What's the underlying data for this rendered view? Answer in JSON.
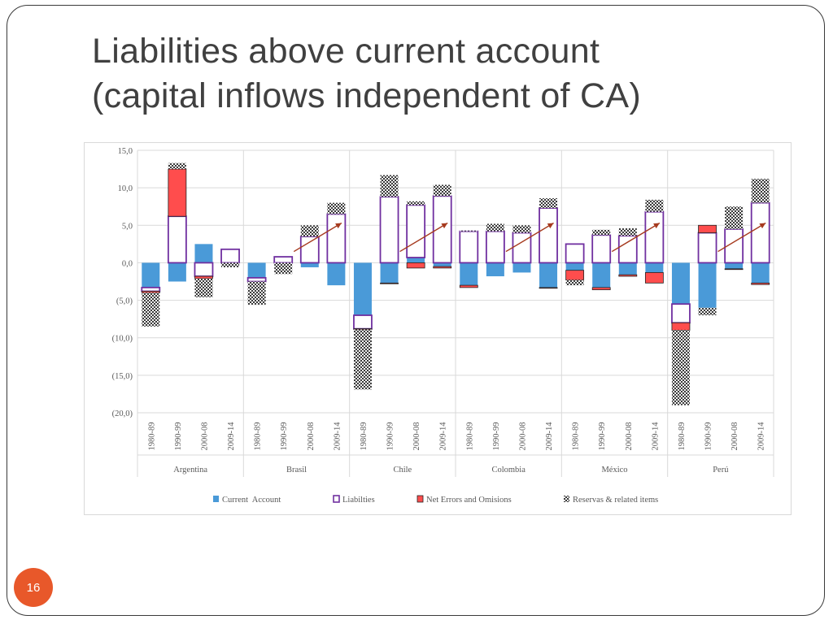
{
  "slide": {
    "title_line1": "Liabilities above current account",
    "title_line2": "(capital inflows independent of CA)",
    "page_number": "16"
  },
  "colors": {
    "current_account": "#4a9ad8",
    "liabilities_border": "#7030a0",
    "net_errors": "#ff4d4d",
    "reserves": "#9e9e9e",
    "arrow": "#a63a1e",
    "badge": "#e8582a"
  },
  "chart_data": {
    "type": "bar",
    "stacked": true,
    "ylim": [
      -20,
      15
    ],
    "yticks": [
      15,
      10,
      5,
      0,
      -5,
      -10,
      -15,
      -20
    ],
    "ytick_labels": [
      "15,0",
      "10,0",
      "5,0",
      "0,0",
      "(5,0)",
      "(10,0)",
      "(15,0)",
      "(20,0)"
    ],
    "grid": true,
    "legend_position": "bottom",
    "periods": [
      "1980-89",
      "1990-99",
      "2000-08",
      "2009-14"
    ],
    "countries": [
      "Argentina",
      "Brasil",
      "Chile",
      "Colombia",
      "México",
      "Perú"
    ],
    "series": [
      {
        "name": "Current  Account",
        "values": [
          -3.3,
          -2.5,
          2.5,
          0,
          -2.0,
          0,
          -0.6,
          -3.0,
          -7.0,
          -2.7,
          0.7,
          -0.5,
          -3.0,
          -1.8,
          -1.3,
          -3.3,
          -1.0,
          -3.3,
          -1.6,
          -1.3,
          -5.5,
          -6.0,
          -0.8,
          -2.7
        ]
      },
      {
        "name": "Liabilties",
        "values": [
          -0.5,
          6.2,
          -1.8,
          1.8,
          -0.5,
          0.8,
          3.5,
          6.5,
          -1.8,
          8.8,
          7.0,
          8.9,
          4.2,
          4.2,
          4.0,
          7.3,
          2.5,
          3.7,
          3.6,
          6.8,
          -2.5,
          4.0,
          4.5,
          8.0
        ]
      },
      {
        "name": "Net Errors and Omisions",
        "values": [
          -0.2,
          6.3,
          -0.3,
          0,
          0,
          0,
          0,
          0,
          -0.1,
          -0.1,
          -0.7,
          -0.2,
          -0.3,
          0,
          0,
          -0.1,
          -1.3,
          -0.3,
          -0.2,
          -1.4,
          -1.0,
          1.0,
          -0.1,
          -0.2
        ]
      },
      {
        "name": "Reservas & related items",
        "values": [
          -4.5,
          0.8,
          -2.5,
          -0.6,
          -3.1,
          -1.5,
          1.5,
          1.5,
          -8.0,
          2.9,
          0.5,
          1.5,
          0.1,
          1.0,
          1.0,
          1.3,
          -0.7,
          0.7,
          1.0,
          1.6,
          -10.0,
          -1.0,
          3.0,
          3.2
        ]
      }
    ]
  }
}
